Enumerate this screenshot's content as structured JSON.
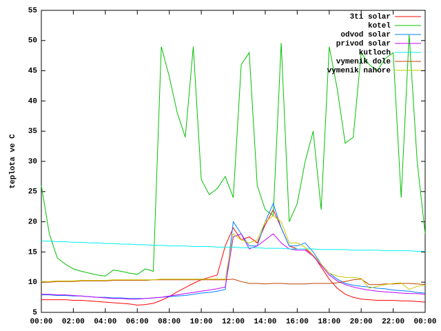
{
  "chart_data": {
    "type": "line",
    "ylabel": "teplota ve C",
    "x": [
      0,
      0.5,
      1,
      1.5,
      2,
      2.5,
      3,
      3.5,
      4,
      4.5,
      5,
      5.5,
      6,
      6.5,
      7,
      7.5,
      8,
      8.5,
      9,
      9.5,
      10,
      10.5,
      11,
      11.5,
      12,
      12.5,
      13,
      13.5,
      14,
      14.5,
      15,
      15.5,
      16,
      16.5,
      17,
      17.5,
      18,
      18.5,
      19,
      19.5,
      20,
      20.5,
      21,
      21.5,
      22,
      22.5,
      23,
      23.5,
      24
    ],
    "xlim": [
      0,
      24
    ],
    "xticks": [
      {
        "value": 0,
        "label": "00:00"
      },
      {
        "value": 2,
        "label": "02:00"
      },
      {
        "value": 4,
        "label": "04:00"
      },
      {
        "value": 6,
        "label": "06:00"
      },
      {
        "value": 8,
        "label": "08:00"
      },
      {
        "value": 10,
        "label": "10:00"
      },
      {
        "value": 12,
        "label": "12:00"
      },
      {
        "value": 14,
        "label": "14:00"
      },
      {
        "value": 16,
        "label": "16:00"
      },
      {
        "value": 18,
        "label": "18:00"
      },
      {
        "value": 20,
        "label": "20:00"
      },
      {
        "value": 22,
        "label": "22:00"
      },
      {
        "value": 24,
        "label": "00:00"
      }
    ],
    "ylim": [
      5,
      55
    ],
    "yticks": [
      5,
      10,
      15,
      20,
      25,
      30,
      35,
      40,
      45,
      50,
      55
    ],
    "legend": "top right",
    "series": [
      {
        "name": "3ti solar",
        "color": "#ff0000",
        "values": [
          7.1,
          7.1,
          7.1,
          7.1,
          7.0,
          7.0,
          6.9,
          6.8,
          6.7,
          6.6,
          6.5,
          6.4,
          6.2,
          6.3,
          6.5,
          7,
          7.6,
          8.4,
          9.1,
          9.8,
          10.4,
          10.8,
          11.2,
          16,
          19,
          17,
          17.5,
          16.5,
          19.5,
          22,
          19,
          16,
          15.5,
          15.5,
          14.5,
          12.5,
          10.5,
          9,
          8,
          7.5,
          7.2,
          7.1,
          7,
          7,
          7,
          6.9,
          6.9,
          6.8,
          6.7
        ]
      },
      {
        "name": "kotel",
        "color": "#00c000",
        "values": [
          26,
          18,
          14,
          13,
          12.2,
          11.8,
          11.5,
          11.2,
          11,
          12,
          11.8,
          11.5,
          11.3,
          12.2,
          11.8,
          49,
          44,
          38,
          34,
          49,
          27,
          24.5,
          25.5,
          27.5,
          24,
          46,
          48,
          26,
          22,
          21,
          49.6,
          20,
          23,
          30,
          35,
          22,
          49,
          42,
          33,
          34,
          48,
          46,
          45,
          47,
          48,
          24,
          51,
          30,
          18
        ]
      },
      {
        "name": "odvod solar",
        "color": "#0080ff",
        "values": [
          7.9,
          7.9,
          7.8,
          7.8,
          7.7,
          7.7,
          7.6,
          7.5,
          7.5,
          7.4,
          7.4,
          7.3,
          7.3,
          7.3,
          7.4,
          7.5,
          7.6,
          7.7,
          7.8,
          8,
          8.2,
          8.3,
          8.5,
          8.8,
          20,
          18,
          16,
          16,
          20,
          23,
          19,
          16,
          16,
          16.5,
          15,
          13,
          11.5,
          10.5,
          9.8,
          9.5,
          9.3,
          9.2,
          9,
          8.9,
          8.7,
          8.6,
          8.5,
          8.3,
          8.2
        ]
      },
      {
        "name": "privod solar",
        "color": "#c000ff",
        "values": [
          8,
          8,
          7.9,
          7.9,
          7.8,
          7.7,
          7.6,
          7.5,
          7.4,
          7.3,
          7.3,
          7.2,
          7.2,
          7.3,
          7.4,
          7.5,
          7.7,
          7.9,
          8.1,
          8.3,
          8.5,
          8.7,
          8.9,
          9.2,
          17.5,
          18,
          15.5,
          16,
          17,
          18,
          16.5,
          15.5,
          15.3,
          15.3,
          14.3,
          12.8,
          11.2,
          10.2,
          9.6,
          9.2,
          8.9,
          8.7,
          8.5,
          8.4,
          8.3,
          8.2,
          8.1,
          8.1,
          8
        ]
      },
      {
        "name": "kutloch",
        "color": "#00eeee",
        "values": [
          16.8,
          16.8,
          16.7,
          16.7,
          16.6,
          16.6,
          16.5,
          16.5,
          16.4,
          16.4,
          16.3,
          16.3,
          16.2,
          16.2,
          16.1,
          16.1,
          16.0,
          16.0,
          16.0,
          15.9,
          15.9,
          15.9,
          15.8,
          15.8,
          15.8,
          15.7,
          15.7,
          15.7,
          15.6,
          15.6,
          15.6,
          15.5,
          15.5,
          15.5,
          15.5,
          15.4,
          15.4,
          15.4,
          15.4,
          15.3,
          15.3,
          15.3,
          15.3,
          15.2,
          15.2,
          15.2,
          15.2,
          15.1,
          15.1
        ]
      },
      {
        "name": "vymenik dole",
        "color": "#c04000",
        "values": [
          10,
          10,
          10.1,
          10.1,
          10.1,
          10.2,
          10.2,
          10.2,
          10.2,
          10.3,
          10.3,
          10.3,
          10.3,
          10.3,
          10.4,
          10.4,
          10.4,
          10.4,
          10.4,
          10.4,
          10.4,
          10.4,
          10.4,
          10.4,
          10.5,
          10.1,
          9.8,
          9.8,
          9.7,
          9.8,
          9.8,
          9.7,
          9.7,
          9.7,
          9.8,
          9.8,
          9.8,
          9.9,
          10.1,
          10.4,
          10.5,
          9.6,
          9.6,
          9.7,
          9.7,
          9.8,
          9.8,
          9.7,
          9.6
        ]
      },
      {
        "name": "vymenik nahore",
        "color": "#c8c800",
        "values": [
          10.1,
          10.1,
          10.2,
          10.2,
          10.2,
          10.3,
          10.3,
          10.3,
          10.3,
          10.4,
          10.4,
          10.4,
          10.4,
          10.4,
          10.4,
          10.5,
          10.5,
          10.5,
          10.5,
          10.5,
          10.5,
          10.5,
          10.5,
          10.5,
          18,
          17,
          16.5,
          17,
          20,
          21,
          20,
          16.5,
          16.5,
          15.8,
          14.5,
          13,
          11.5,
          11,
          10.8,
          10.8,
          10.6,
          9,
          9.3,
          9.6,
          9.8,
          9.9,
          8.8,
          9.3,
          9.5
        ]
      }
    ]
  }
}
